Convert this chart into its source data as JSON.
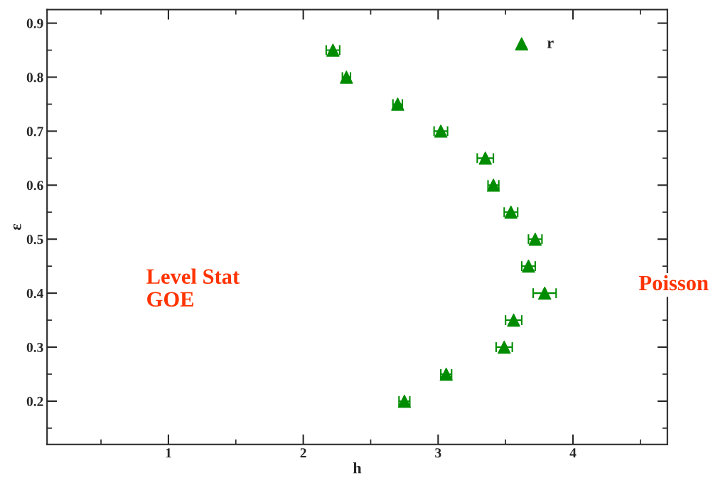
{
  "chart_data": {
    "type": "scatter",
    "xlabel": "h",
    "ylabel": "ε",
    "series": [
      {
        "name": "r",
        "color": "#008c00",
        "x": [
          2.22,
          2.32,
          2.7,
          3.02,
          3.35,
          3.41,
          3.54,
          3.72,
          3.67,
          3.79,
          3.56,
          3.49,
          3.06,
          2.75
        ],
        "values": [
          0.85,
          0.8,
          0.75,
          0.7,
          0.65,
          0.6,
          0.55,
          0.5,
          0.45,
          0.4,
          0.35,
          0.3,
          0.25,
          0.2
        ],
        "xerrors": [
          0.05,
          0.03,
          0.035,
          0.05,
          0.06,
          0.04,
          0.05,
          0.05,
          0.05,
          0.085,
          0.06,
          0.06,
          0.04,
          0.04
        ]
      }
    ],
    "marker": "triangle",
    "legend": "top right",
    "grid": false,
    "xlim": [
      0.1,
      4.7
    ],
    "ylim": [
      0.12,
      0.925
    ],
    "xticks": [
      1,
      2,
      3,
      4
    ],
    "yticks": [
      0.2,
      0.3,
      0.4,
      0.5,
      0.6,
      0.7,
      0.8,
      0.9
    ],
    "annotations": [
      "Level Stat\nGOE",
      "Poisson"
    ]
  }
}
